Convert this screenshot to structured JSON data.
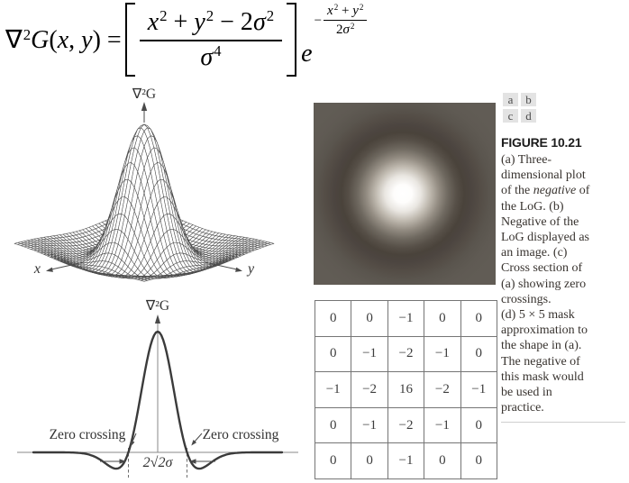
{
  "formula": {
    "lhs": [
      [
        "r",
        "∇"
      ],
      [
        "s",
        "2"
      ],
      [
        "i",
        "G"
      ],
      [
        "r",
        "("
      ],
      [
        "i",
        "x"
      ],
      [
        "r",
        ", "
      ],
      [
        "i",
        "y"
      ],
      [
        "r",
        ") = "
      ]
    ],
    "numerator": [
      [
        "i",
        "x"
      ],
      [
        "s",
        "2"
      ],
      [
        "r",
        " + "
      ],
      [
        "i",
        "y"
      ],
      [
        "s",
        "2"
      ],
      [
        "r",
        " − 2"
      ],
      [
        "i",
        "σ"
      ],
      [
        "s",
        "2"
      ]
    ],
    "denominator": [
      [
        "i",
        "σ"
      ],
      [
        "s",
        "4"
      ]
    ],
    "base": "e",
    "exp_sign": "−",
    "exp_numerator": [
      [
        "i",
        "x"
      ],
      [
        "s",
        "2"
      ],
      [
        "r",
        " + "
      ],
      [
        "i",
        "y"
      ],
      [
        "s",
        "2"
      ]
    ],
    "exp_denominator": [
      [
        "r",
        "2"
      ],
      [
        "i",
        "σ"
      ],
      [
        "s",
        "2"
      ]
    ]
  },
  "panel_a": {
    "z_axis_label": "∇²G",
    "x_axis_label": "x",
    "y_axis_label": "y"
  },
  "panel_c": {
    "axis_label": "∇²G",
    "zero_crossing_left": "Zero crossing",
    "zero_crossing_right": "Zero crossing",
    "width_label": "2√2σ"
  },
  "panel_d": {
    "mask": [
      [
        "0",
        "0",
        "−1",
        "0",
        "0"
      ],
      [
        "0",
        "−1",
        "−2",
        "−1",
        "0"
      ],
      [
        "−1",
        "−2",
        "16",
        "−2",
        "−1"
      ],
      [
        "0",
        "−1",
        "−2",
        "−1",
        "0"
      ],
      [
        "0",
        "0",
        "−1",
        "0",
        "0"
      ]
    ]
  },
  "layout_key": {
    "letters": [
      "a",
      "b",
      "c",
      "d"
    ]
  },
  "caption": {
    "title": "FIGURE 10.21",
    "segments": [
      [
        "r",
        "(a) Three-"
      ],
      [
        "br"
      ],
      [
        "r",
        "dimensional plot"
      ],
      [
        "br"
      ],
      [
        "r",
        "of the "
      ],
      [
        "i",
        "negative"
      ],
      [
        "r",
        " of"
      ],
      [
        "br"
      ],
      [
        "r",
        "the LoG. (b)"
      ],
      [
        "br"
      ],
      [
        "r",
        "Negative of the"
      ],
      [
        "br"
      ],
      [
        "r",
        "LoG displayed as"
      ],
      [
        "br"
      ],
      [
        "r",
        "an image. (c)"
      ],
      [
        "br"
      ],
      [
        "r",
        "Cross section of"
      ],
      [
        "br"
      ],
      [
        "r",
        "(a) showing zero"
      ],
      [
        "br"
      ],
      [
        "r",
        "crossings."
      ],
      [
        "br"
      ],
      [
        "r",
        "(d) 5 × 5 mask"
      ],
      [
        "br"
      ],
      [
        "r",
        "approximation to"
      ],
      [
        "br"
      ],
      [
        "r",
        "the shape in (a)."
      ],
      [
        "br"
      ],
      [
        "r",
        "The negative of"
      ],
      [
        "br"
      ],
      [
        "r",
        "this mask would"
      ],
      [
        "br"
      ],
      [
        "r",
        "be used in"
      ],
      [
        "br"
      ],
      [
        "r",
        "practice."
      ]
    ]
  }
}
